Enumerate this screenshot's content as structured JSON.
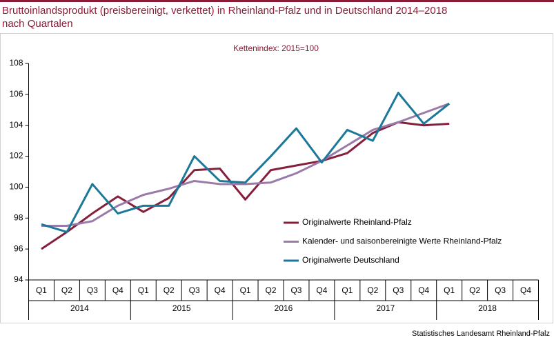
{
  "chart_data": {
    "type": "line",
    "title": "Bruttoinlandsprodukt (preisbereinigt, verkettet) in Rheinland-Pfalz und in Deutschland 2014–2018",
    "title_line2": "nach Quartalen",
    "subtitle": "Kettenindex: 2015=100",
    "source": "Statistisches Landesamt Rheinland-Pfalz",
    "categories": [
      "Q1",
      "Q2",
      "Q3",
      "Q4",
      "Q1",
      "Q2",
      "Q3",
      "Q4",
      "Q1",
      "Q2",
      "Q3",
      "Q4",
      "Q1",
      "Q2",
      "Q3",
      "Q4",
      "Q1",
      "Q2",
      "Q3",
      "Q4"
    ],
    "years": [
      "2014",
      "2015",
      "2016",
      "2017",
      "2018"
    ],
    "series": [
      {
        "name": "Originalwerte Rheinland-Pfalz",
        "color": "#861f3c",
        "values": [
          96.0,
          97.1,
          98.3,
          99.4,
          98.4,
          99.3,
          101.1,
          101.2,
          99.2,
          101.1,
          101.4,
          101.7,
          102.2,
          103.5,
          104.2,
          104.0,
          104.1,
          null,
          null,
          null
        ]
      },
      {
        "name": "Kalender- und saisonbereinigte Werte Rheinland-Pfalz",
        "color": "#9a7aa8",
        "values": [
          97.5,
          97.5,
          97.8,
          98.8,
          99.5,
          99.9,
          100.4,
          100.2,
          100.2,
          100.3,
          100.9,
          101.7,
          102.7,
          103.7,
          104.2,
          104.8,
          105.4,
          null,
          null,
          null
        ]
      },
      {
        "name": "Originalwerte Deutschland",
        "color": "#1c7898",
        "values": [
          97.6,
          97.1,
          100.2,
          98.3,
          98.8,
          98.8,
          102.0,
          100.4,
          100.3,
          102.0,
          103.8,
          101.6,
          103.7,
          103.0,
          106.1,
          104.1,
          105.4,
          null,
          null,
          null
        ]
      }
    ],
    "ylim": [
      94,
      108
    ],
    "yticks": [
      94,
      96,
      98,
      100,
      102,
      104,
      106,
      108
    ],
    "grid": false
  }
}
